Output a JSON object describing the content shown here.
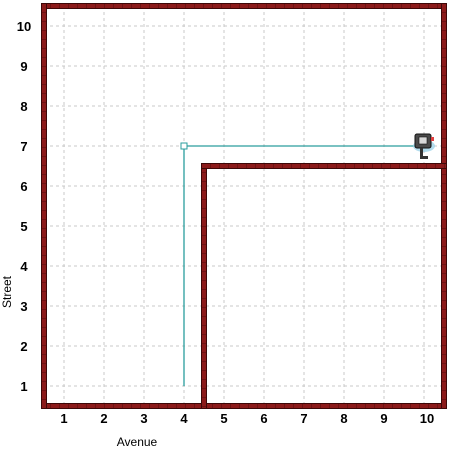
{
  "world": {
    "avenues": 10,
    "streets": 10,
    "colors": {
      "wall": "#8b1a1a",
      "wall_edge": "#3d0808",
      "grid": "#c8c8c8",
      "path": "#2a9d9d",
      "robot_body": "#4a4a4a",
      "robot_accent": "#e04040"
    },
    "walls": [
      {
        "label": "inner wall west of avenue 5",
        "kind": "vertical",
        "after_avenue": 4,
        "from_street": 1,
        "to_street": 6
      },
      {
        "label": "inner wall north of street 6",
        "kind": "horizontal",
        "above_street": 6,
        "from_avenue": 5,
        "to_avenue": 10
      }
    ],
    "trace": {
      "points": [
        [
          4,
          1
        ],
        [
          4,
          7
        ],
        [
          10,
          7
        ]
      ],
      "start_marker": [
        4,
        7
      ]
    },
    "robot": {
      "avenue": 10,
      "street": 7,
      "facing": "east",
      "icon": "robot-icon"
    }
  },
  "axes": {
    "x_label": "Avenue",
    "y_label": "Street",
    "x_ticks": [
      "1",
      "2",
      "3",
      "4",
      "5",
      "6",
      "7",
      "8",
      "9",
      "10"
    ],
    "y_ticks": [
      "1",
      "2",
      "3",
      "4",
      "5",
      "6",
      "7",
      "8",
      "9",
      "10"
    ]
  }
}
